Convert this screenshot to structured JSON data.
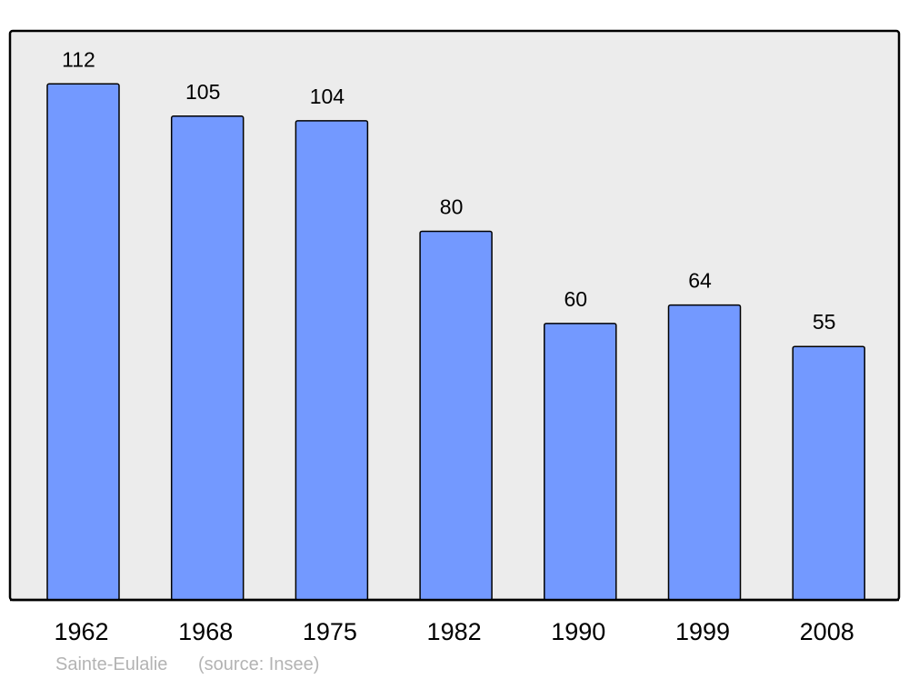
{
  "chart_data": {
    "type": "bar",
    "categories": [
      "1962",
      "1968",
      "1975",
      "1982",
      "1990",
      "1999",
      "2008"
    ],
    "values": [
      112,
      105,
      104,
      80,
      60,
      64,
      55
    ],
    "title": "",
    "xlabel": "",
    "ylabel": "",
    "ylim": [
      0,
      123.5
    ],
    "grid": false,
    "data_labels": true,
    "caption": {
      "place": "Sainte-Eulalie",
      "source": "(source: Insee)"
    },
    "colors": {
      "bar": "#7399ff",
      "bar_stroke": "#000000",
      "plot_background": "#ececec",
      "caption": "#b3b3b3"
    }
  }
}
